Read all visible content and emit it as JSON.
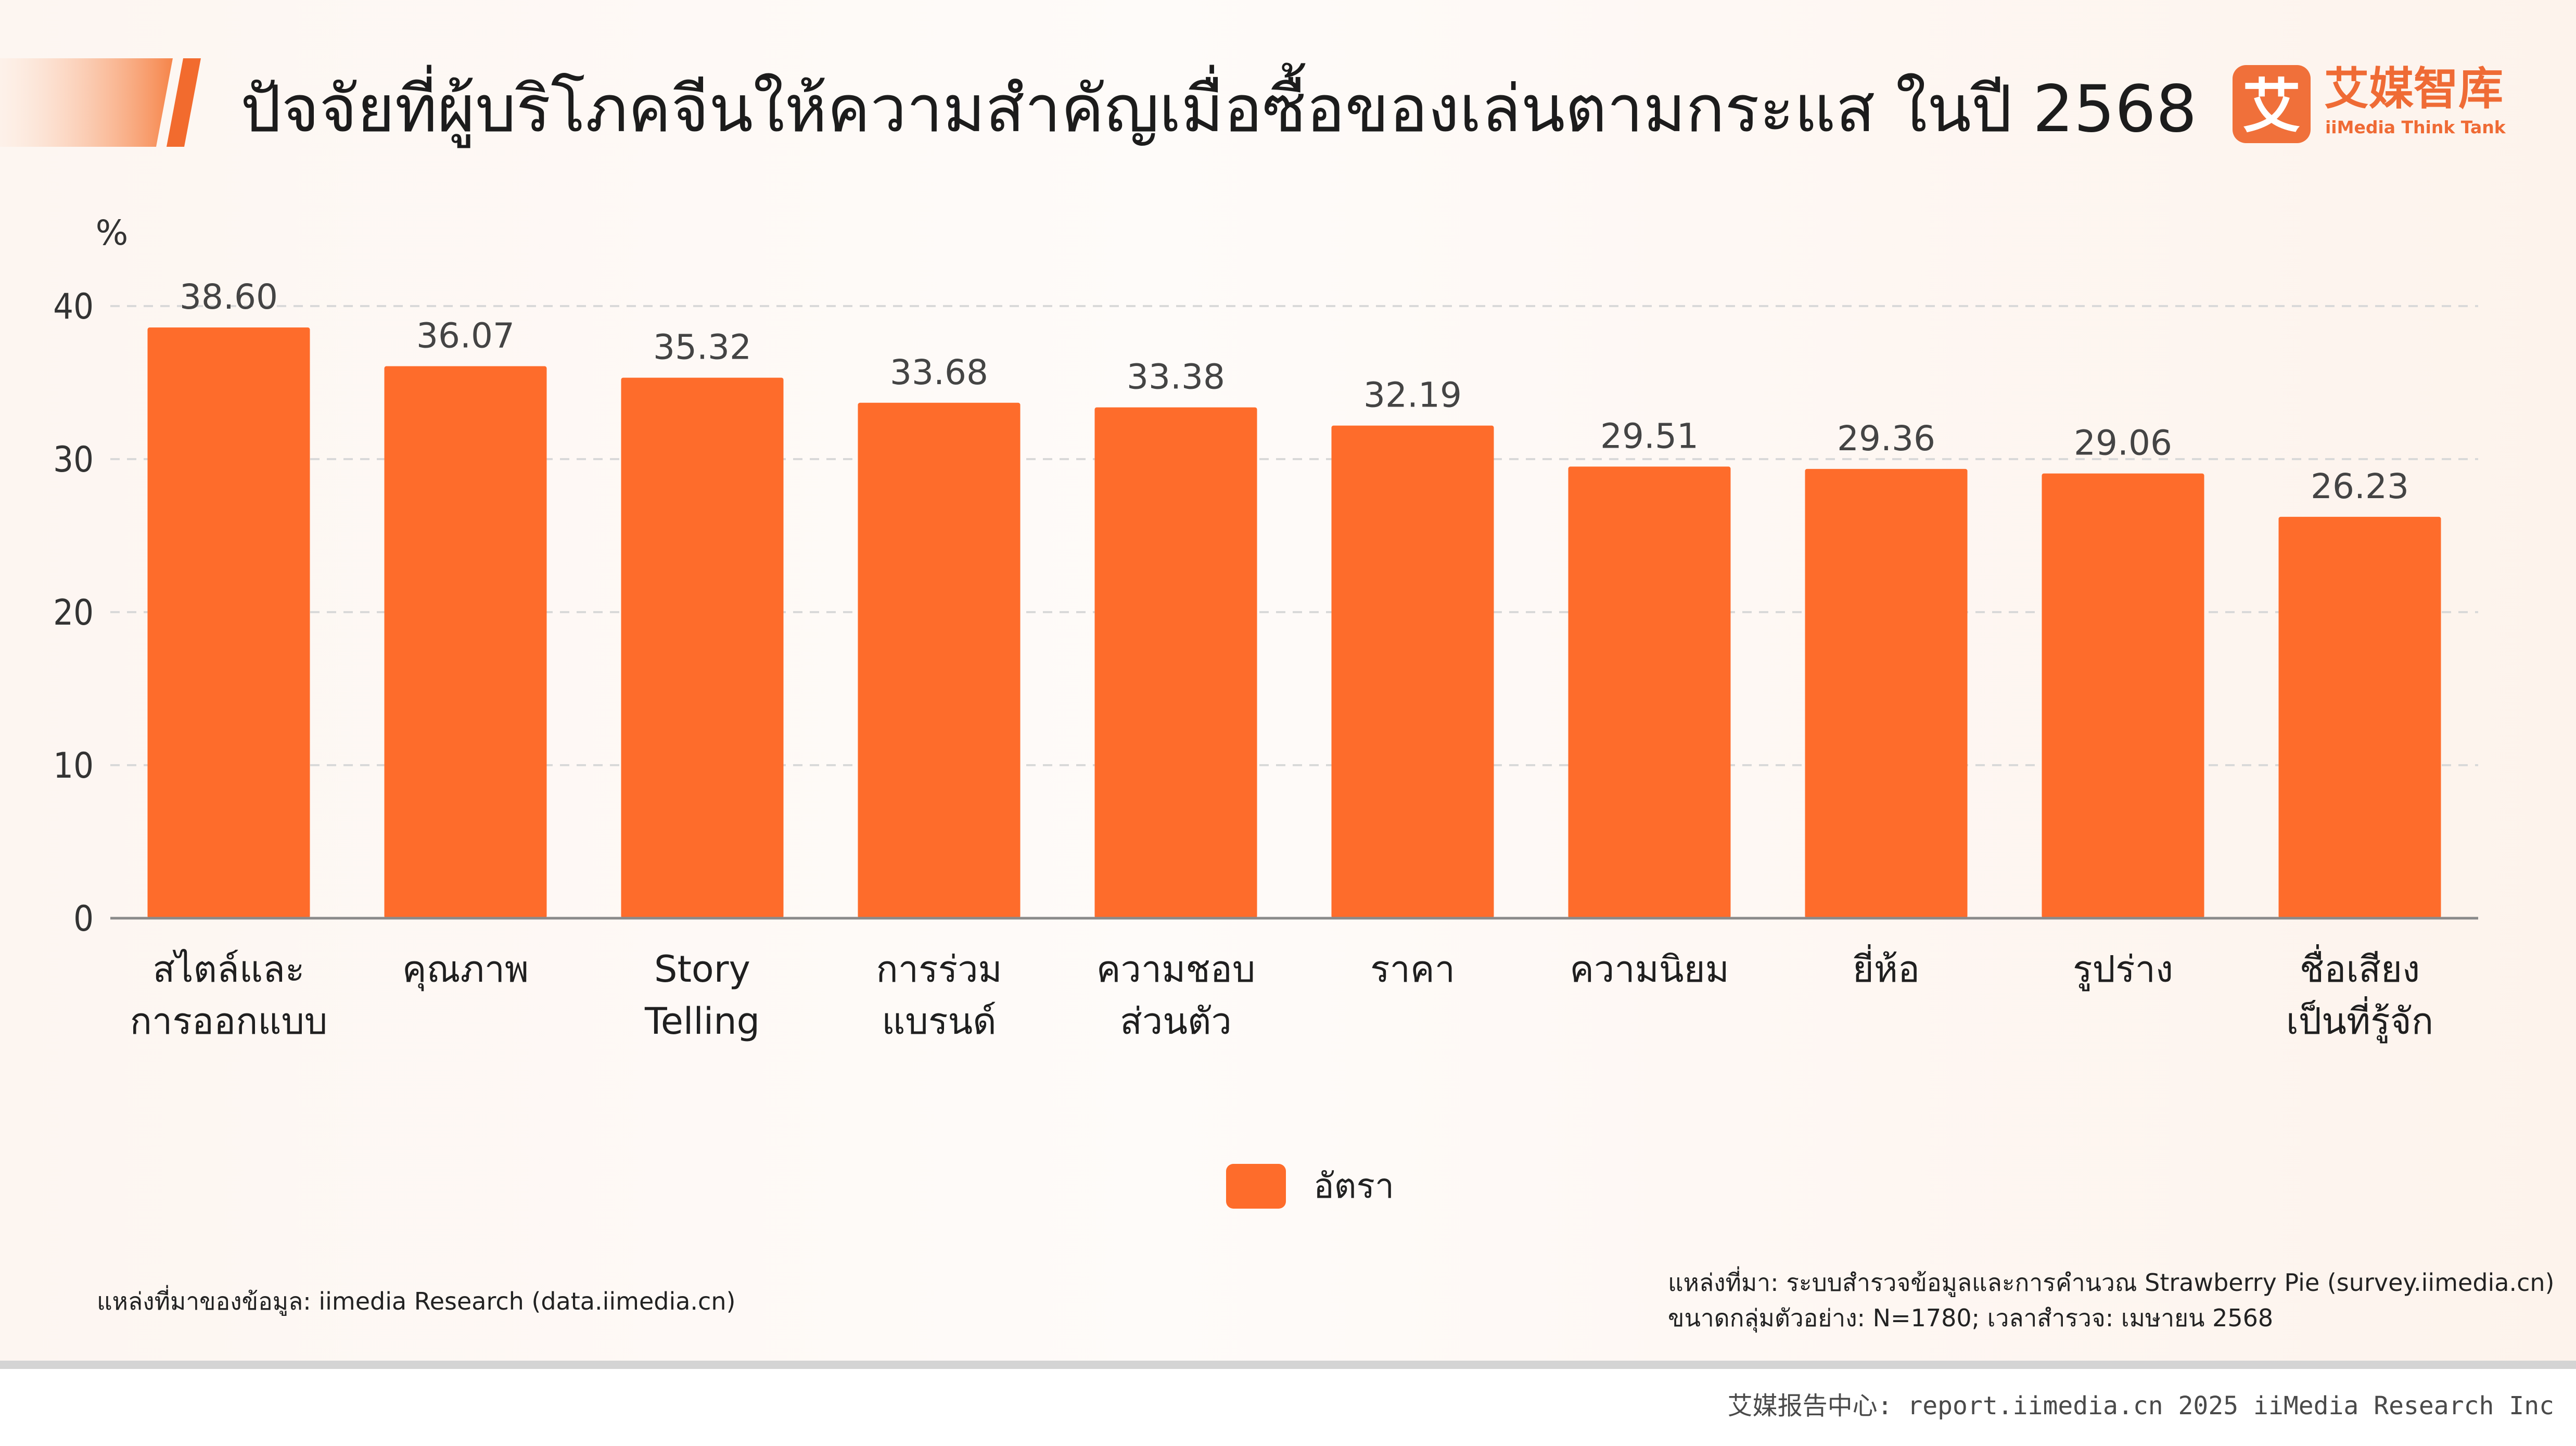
{
  "title": "ปัจจัยที่ผู้บริโภคจีนให้ความสำคัญเมื่อซื้อของเล่นตามกระแส ในปี 2568",
  "brand": {
    "logo_mark": "艾",
    "name": "艾媒智库",
    "subtitle": "iiMedia Think Tank",
    "accent_color": "#ef6b35"
  },
  "chart_data": {
    "type": "bar",
    "ylabel": "%",
    "ylim": [
      0,
      40
    ],
    "yticks": [
      0,
      10,
      20,
      30,
      40
    ],
    "grid": true,
    "legend_position": "bottom",
    "bar_color": "#fe6c2b",
    "categories": [
      [
        "สไตล์และ",
        "การออกแบบ"
      ],
      [
        "คุณภาพ"
      ],
      [
        "Story",
        "Telling"
      ],
      [
        "การร่วม",
        "แบรนด์"
      ],
      [
        "ความชอบ",
        "ส่วนตัว"
      ],
      [
        "ราคา"
      ],
      [
        "ความนิยม"
      ],
      [
        "ยี่ห้อ"
      ],
      [
        "รูปร่าง"
      ],
      [
        "ชื่อเสียง",
        "เป็นที่รู้จัก"
      ]
    ],
    "series": [
      {
        "name": "อัตรา",
        "values": [
          38.6,
          36.07,
          35.32,
          33.68,
          33.38,
          32.19,
          29.51,
          29.36,
          29.06,
          26.23
        ],
        "labels": [
          "38.60",
          "36.07",
          "35.32",
          "33.68",
          "33.38",
          "32.19",
          "29.51",
          "29.36",
          "29.06",
          "26.23"
        ]
      }
    ]
  },
  "source_left": "แหล่งที่มาของข้อมูล: iimedia Research (data.iimedia.cn)",
  "source_right": {
    "line1": "แหล่งที่มา: ระบบสำรวจข้อมูลและการคำนวณ Strawberry Pie (survey.iimedia.cn)",
    "line2": "ขนาดกลุ่มตัวอย่าง: N=1780; เวลาสำรวจ: เมษายน 2568"
  },
  "footer": "艾媒报告中心: report.iimedia.cn   2025 iiMedia Research Inc"
}
